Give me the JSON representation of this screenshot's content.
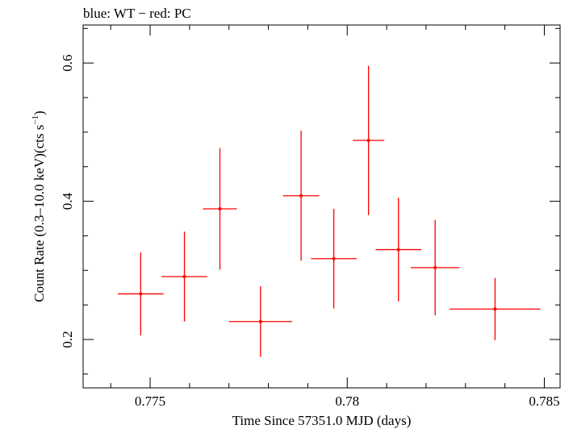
{
  "chart_data": {
    "type": "scatter",
    "title": "blue: WT − red: PC",
    "xlabel": "Time Since 57351.0 MJD (days)",
    "ylabel_main": "Count Rate (0.3–10.0 keV)(cts s",
    "ylabel_sup": "−1",
    "ylabel_tail": ")",
    "xlim": [
      0.7733,
      0.7854
    ],
    "ylim": [
      0.13,
      0.655
    ],
    "xticks": [
      0.775,
      0.78,
      0.785
    ],
    "xtick_labels": [
      "0.775",
      "0.78",
      "0.785"
    ],
    "yticks": [
      0.2,
      0.4,
      0.6
    ],
    "ytick_labels": [
      "0.2",
      "0.4",
      "0.6"
    ],
    "series": [
      {
        "name": "PC",
        "color": "#ff0000",
        "points": [
          {
            "x": 0.77476,
            "xerr": 0.00058,
            "y": 0.266,
            "yerr": 0.06
          },
          {
            "x": 0.77587,
            "xerr": 0.00058,
            "y": 0.291,
            "yerr": 0.065
          },
          {
            "x": 0.77677,
            "xerr": 0.00043,
            "y": 0.389,
            "yerr": 0.088
          },
          {
            "x": 0.7778,
            "xerr": 0.0008,
            "y": 0.226,
            "yerr": 0.051
          },
          {
            "x": 0.77883,
            "xerr": 0.00046,
            "y": 0.408,
            "yerr": 0.094
          },
          {
            "x": 0.77966,
            "xerr": 0.00058,
            "y": 0.317,
            "yerr": 0.072
          },
          {
            "x": 0.78054,
            "xerr": 0.0004,
            "y": 0.488,
            "yerr": 0.108
          },
          {
            "x": 0.7813,
            "xerr": 0.00058,
            "y": 0.33,
            "yerr": 0.075
          },
          {
            "x": 0.78223,
            "xerr": 0.00062,
            "y": 0.304,
            "yerr": 0.069
          },
          {
            "x": 0.78375,
            "xerr": 0.00115,
            "y": 0.244,
            "yerr": 0.045
          }
        ]
      }
    ]
  }
}
